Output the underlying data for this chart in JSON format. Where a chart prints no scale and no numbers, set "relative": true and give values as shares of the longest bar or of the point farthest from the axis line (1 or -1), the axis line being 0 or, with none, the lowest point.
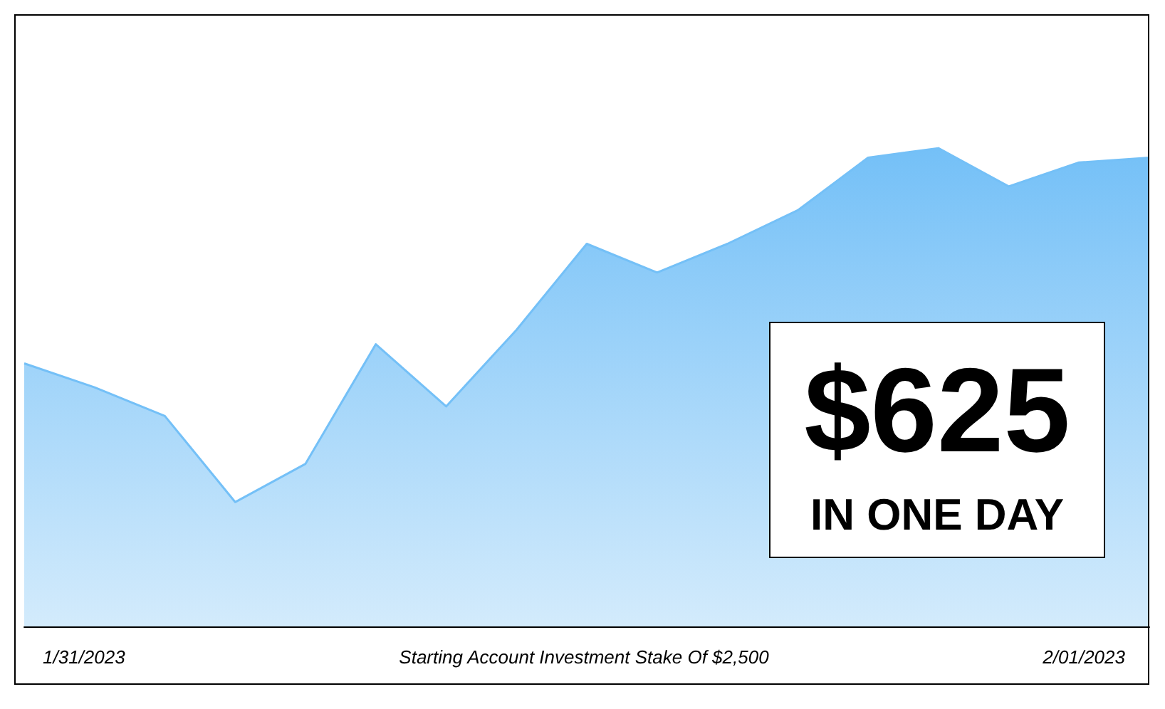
{
  "chart_data": {
    "type": "area",
    "relative": true,
    "categories": [
      null,
      null,
      null,
      null,
      null,
      null,
      null,
      null,
      null,
      null,
      null,
      null,
      null,
      null,
      null,
      null,
      null
    ],
    "values": [
      0.55,
      0.5,
      0.44,
      0.26,
      0.34,
      0.59,
      0.46,
      0.62,
      0.8,
      0.74,
      0.8,
      0.87,
      0.98,
      1,
      0.92,
      0.97,
      0.98
    ],
    "color": "#74c0f7",
    "marker": "none",
    "annotations": [
      "$625",
      "IN ONE DAY",
      "1/31/2023",
      "Starting Account Investment Stake Of $2,500",
      "2/01/2023"
    ]
  }
}
